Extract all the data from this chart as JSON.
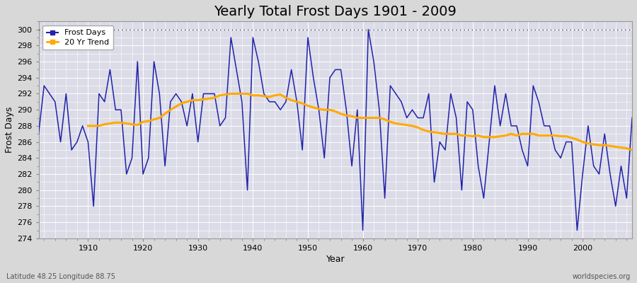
{
  "title": "Yearly Total Frost Days 1901 - 2009",
  "xlabel": "Year",
  "ylabel": "Frost Days",
  "lat_lon_label": "Latitude 48.25 Longitude 88.75",
  "watermark": "worldspecies.org",
  "years": [
    1901,
    1902,
    1903,
    1904,
    1905,
    1906,
    1907,
    1908,
    1909,
    1910,
    1911,
    1912,
    1913,
    1914,
    1915,
    1916,
    1917,
    1918,
    1919,
    1920,
    1921,
    1922,
    1923,
    1924,
    1925,
    1926,
    1927,
    1928,
    1929,
    1930,
    1931,
    1932,
    1933,
    1934,
    1935,
    1936,
    1937,
    1938,
    1939,
    1940,
    1941,
    1942,
    1943,
    1944,
    1945,
    1946,
    1947,
    1948,
    1949,
    1950,
    1951,
    1952,
    1953,
    1954,
    1955,
    1956,
    1957,
    1958,
    1959,
    1960,
    1961,
    1962,
    1963,
    1964,
    1965,
    1966,
    1967,
    1968,
    1969,
    1970,
    1971,
    1972,
    1973,
    1974,
    1975,
    1976,
    1977,
    1978,
    1979,
    1980,
    1981,
    1982,
    1983,
    1984,
    1985,
    1986,
    1987,
    1988,
    1989,
    1990,
    1991,
    1992,
    1993,
    1994,
    1995,
    1996,
    1997,
    1998,
    1999,
    2000,
    2001,
    2002,
    2003,
    2004,
    2005,
    2006,
    2007,
    2008,
    2009
  ],
  "frost_days": [
    287,
    293,
    292,
    291,
    286,
    292,
    285,
    286,
    288,
    286,
    278,
    292,
    291,
    295,
    290,
    290,
    282,
    284,
    296,
    282,
    284,
    296,
    292,
    283,
    291,
    292,
    291,
    288,
    292,
    286,
    292,
    292,
    292,
    288,
    289,
    299,
    295,
    291,
    280,
    299,
    296,
    292,
    291,
    291,
    290,
    291,
    295,
    291,
    285,
    299,
    294,
    290,
    284,
    294,
    295,
    295,
    290,
    283,
    290,
    275,
    300,
    296,
    290,
    279,
    293,
    292,
    291,
    289,
    290,
    289,
    289,
    292,
    281,
    286,
    285,
    292,
    289,
    280,
    291,
    290,
    283,
    279,
    286,
    293,
    288,
    292,
    288,
    288,
    285,
    283,
    293,
    291,
    288,
    288,
    285,
    284,
    286,
    286,
    275,
    282,
    288,
    283,
    282,
    287,
    282,
    278,
    283,
    279,
    289
  ],
  "trend_years": [
    1910,
    1911,
    1912,
    1913,
    1914,
    1915,
    1916,
    1917,
    1918,
    1919,
    1920,
    1921,
    1922,
    1923,
    1924,
    1925,
    1926,
    1927,
    1928,
    1929,
    1930,
    1931,
    1932,
    1933,
    1934,
    1935,
    1936,
    1937,
    1938,
    1939,
    1940,
    1941,
    1942,
    1943,
    1944,
    1945,
    1946,
    1947,
    1948,
    1949,
    1950,
    1951,
    1952,
    1953,
    1954,
    1955,
    1956,
    1957,
    1958,
    1959,
    1960,
    1961,
    1962,
    1963,
    1964,
    1965,
    1966,
    1967,
    1968,
    1969,
    1970,
    1971,
    1972,
    1973,
    1974,
    1975,
    1976,
    1977,
    1978,
    1979,
    1980,
    1981,
    1982,
    1983,
    1984,
    1985,
    1986,
    1987,
    1988,
    1989,
    1990,
    1991,
    1992,
    1993,
    1994,
    1995,
    1996,
    1997,
    1998,
    1999,
    2000,
    2001,
    2002,
    2003,
    2004,
    2005,
    2006,
    2007,
    2008,
    2009
  ],
  "trend_values": [
    288.0,
    288.0,
    288.0,
    288.2,
    288.3,
    288.4,
    288.4,
    288.3,
    288.2,
    288.1,
    288.5,
    288.6,
    288.8,
    289.0,
    289.5,
    290.0,
    290.4,
    290.8,
    291.0,
    291.2,
    291.2,
    291.3,
    291.4,
    291.5,
    291.8,
    291.9,
    292.0,
    292.0,
    292.0,
    292.0,
    291.8,
    291.8,
    291.7,
    291.6,
    291.8,
    291.9,
    291.5,
    291.2,
    291.0,
    290.8,
    290.5,
    290.3,
    290.1,
    290.0,
    290.0,
    289.8,
    289.5,
    289.3,
    289.2,
    289.0,
    289.0,
    289.0,
    289.0,
    289.0,
    288.8,
    288.5,
    288.3,
    288.2,
    288.1,
    288.0,
    287.8,
    287.5,
    287.3,
    287.2,
    287.1,
    287.0,
    287.0,
    287.0,
    286.8,
    286.8,
    286.7,
    286.8,
    286.6,
    286.6,
    286.6,
    286.7,
    286.8,
    287.0,
    286.8,
    287.0,
    287.0,
    287.0,
    286.8,
    286.8,
    286.8,
    286.8,
    286.7,
    286.7,
    286.5,
    286.3,
    286.0,
    285.8,
    285.7,
    285.6,
    285.6,
    285.5,
    285.4,
    285.3,
    285.2,
    285.0
  ],
  "line_color": "#2222aa",
  "trend_color": "#ffaa00",
  "fig_background": "#d8d8d8",
  "plot_background": "#dcdce8",
  "ylim": [
    274,
    301
  ],
  "yticks": [
    274,
    276,
    278,
    280,
    282,
    284,
    286,
    288,
    290,
    292,
    294,
    296,
    298,
    300
  ],
  "xlim": [
    1901,
    2009
  ],
  "title_fontsize": 14,
  "axis_label_fontsize": 9,
  "tick_fontsize": 8,
  "grid_color": "#ffffff",
  "dotted_line_y": 300,
  "dotted_line_color": "#444444",
  "xticks": [
    1910,
    1920,
    1930,
    1940,
    1950,
    1960,
    1970,
    1980,
    1990,
    2000
  ]
}
